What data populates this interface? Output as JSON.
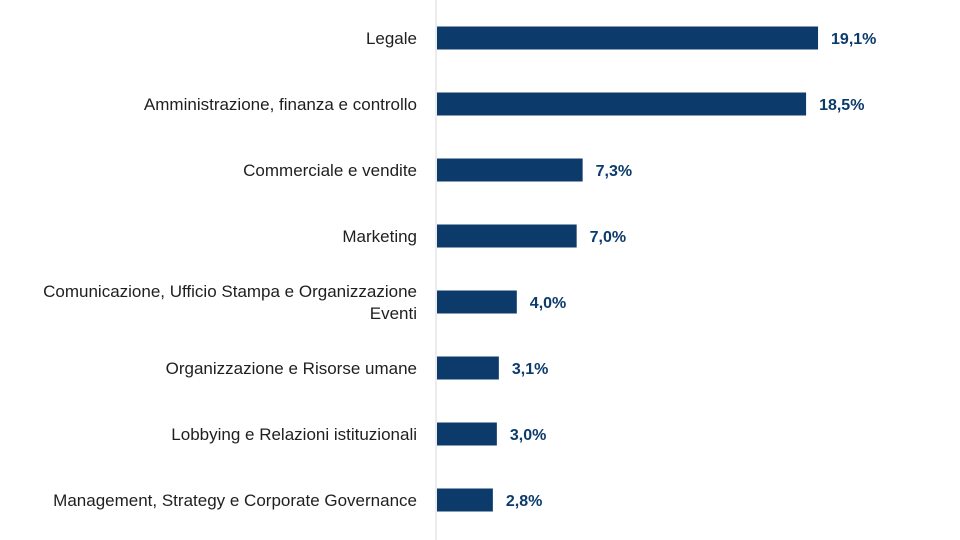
{
  "chart_data": {
    "type": "bar",
    "orientation": "horizontal",
    "categories": [
      [
        "Legale"
      ],
      [
        "Amministrazione, finanza e controllo"
      ],
      [
        "Commerciale e vendite"
      ],
      [
        "Marketing"
      ],
      [
        "Comunicazione, Ufficio Stampa e Organizzazione",
        "Eventi"
      ],
      [
        "Organizzazione e Risorse umane"
      ],
      [
        "Lobbying e Relazioni istituzionali"
      ],
      [
        "Management, Strategy e Corporate Governance"
      ]
    ],
    "values": [
      19.1,
      18.5,
      7.3,
      7.0,
      4.0,
      3.1,
      3.0,
      2.8
    ],
    "value_labels": [
      "19,1%",
      "18,5%",
      "7,3%",
      "7,0%",
      "4,0%",
      "3,1%",
      "3,0%",
      "2,8%"
    ],
    "bar_color": "#0b3a6b",
    "value_label_color": "#0b3a6b",
    "grid": false,
    "legend": "none"
  }
}
